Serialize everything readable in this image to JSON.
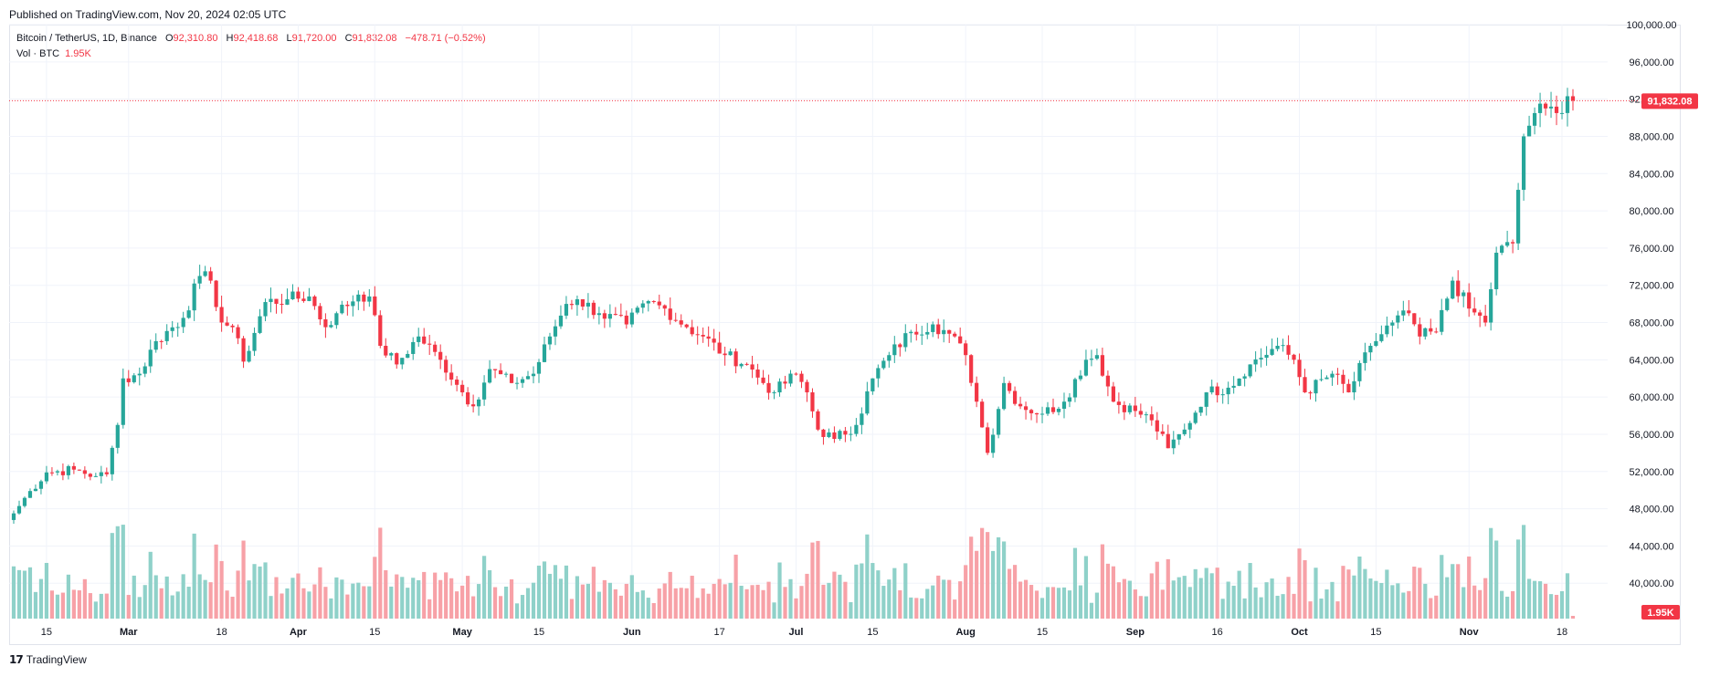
{
  "header": {
    "published": "Published on TradingView.com, Nov 20, 2024 02:05 UTC"
  },
  "legend": {
    "symbol": "Bitcoin / TetherUS, 1D, Binance",
    "open_label": "O",
    "open": "92,310.80",
    "high_label": "H",
    "high": "92,418.68",
    "low_label": "L",
    "low": "91,720.00",
    "close_label": "C",
    "close": "91,832.08",
    "change": "−478.71 (−0.52%)",
    "volume_label": "Vol · BTC",
    "volume": "1.95K"
  },
  "footer": {
    "logo_text": "TradingView",
    "logo_icon": "tradingview-logo-icon"
  },
  "colors": {
    "up": "#26a69a",
    "down": "#f23645",
    "up_volume": "#8fd1c9",
    "down_volume": "#f7a1a7",
    "grid": "#f0f3fa",
    "text": "#131722"
  },
  "chart_data": {
    "type": "candlestick",
    "title": "Bitcoin / TetherUS, 1D, Binance",
    "ylim": [
      36000,
      100000
    ],
    "y_ticks": [
      "100,000.00",
      "96,000.00",
      "92,000.00",
      "88,000.00",
      "84,000.00",
      "80,000.00",
      "76,000.00",
      "72,000.00",
      "68,000.00",
      "64,000.00",
      "60,000.00",
      "56,000.00",
      "52,000.00",
      "48,000.00",
      "44,000.00",
      "40,000.00"
    ],
    "y_tick_values": [
      100000,
      96000,
      92000,
      88000,
      84000,
      80000,
      76000,
      72000,
      68000,
      64000,
      60000,
      56000,
      52000,
      48000,
      44000,
      40000
    ],
    "x_ticks": [
      "15",
      "Mar",
      "18",
      "Apr",
      "15",
      "May",
      "15",
      "Jun",
      "17",
      "Jul",
      "15",
      "Aug",
      "15",
      "Sep",
      "16",
      "Oct",
      "15",
      "Nov",
      "18"
    ],
    "x_tick_dates": [
      "2024-02-15",
      "2024-03-01",
      "2024-03-18",
      "2024-04-01",
      "2024-04-15",
      "2024-05-01",
      "2024-05-15",
      "2024-06-01",
      "2024-06-17",
      "2024-07-01",
      "2024-07-15",
      "2024-08-01",
      "2024-08-15",
      "2024-09-01",
      "2024-09-16",
      "2024-10-01",
      "2024-10-15",
      "2024-11-01",
      "2024-11-18"
    ],
    "first_date": "2024-02-09",
    "last_date": "2024-11-20",
    "last_price": "91,832.08",
    "last_price_value": 91832.08,
    "last_volume": "1.95K",
    "close_path": [
      [
        "2024-02-09",
        47500
      ],
      [
        "2024-02-12",
        49900
      ],
      [
        "2024-02-15",
        51900
      ],
      [
        "2024-02-20",
        52200
      ],
      [
        "2024-02-24",
        51500
      ],
      [
        "2024-02-26",
        51700
      ],
      [
        "2024-02-28",
        57000
      ],
      [
        "2024-02-29",
        62000
      ],
      [
        "2024-03-03",
        62500
      ],
      [
        "2024-03-06",
        66000
      ],
      [
        "2024-03-11",
        68500
      ],
      [
        "2024-03-14",
        73000
      ],
      [
        "2024-03-16",
        72500
      ],
      [
        "2024-03-18",
        68000
      ],
      [
        "2024-03-20",
        67500
      ],
      [
        "2024-03-22",
        63800
      ],
      [
        "2024-03-26",
        70200
      ],
      [
        "2024-03-30",
        70500
      ],
      [
        "2024-04-03",
        70800
      ],
      [
        "2024-04-06",
        67500
      ],
      [
        "2024-04-08",
        69000
      ],
      [
        "2024-04-12",
        71000
      ],
      [
        "2024-04-14",
        70800
      ],
      [
        "2024-04-16",
        65500
      ],
      [
        "2024-04-19",
        63500
      ],
      [
        "2024-04-23",
        66500
      ],
      [
        "2024-04-27",
        64000
      ],
      [
        "2024-05-01",
        60500
      ],
      [
        "2024-05-03",
        59000
      ],
      [
        "2024-05-06",
        63000
      ],
      [
        "2024-05-10",
        61500
      ],
      [
        "2024-05-14",
        62500
      ],
      [
        "2024-05-17",
        66500
      ],
      [
        "2024-05-20",
        70000
      ],
      [
        "2024-05-22",
        70500
      ],
      [
        "2024-05-26",
        69000
      ],
      [
        "2024-05-31",
        67800
      ],
      [
        "2024-06-04",
        70300
      ],
      [
        "2024-06-07",
        69500
      ],
      [
        "2024-06-11",
        67500
      ],
      [
        "2024-06-14",
        66500
      ],
      [
        "2024-06-18",
        64500
      ],
      [
        "2024-06-22",
        63500
      ],
      [
        "2024-06-25",
        61500
      ],
      [
        "2024-06-27",
        60500
      ],
      [
        "2024-07-01",
        62500
      ],
      [
        "2024-07-03",
        60500
      ],
      [
        "2024-07-05",
        56500
      ],
      [
        "2024-07-08",
        55500
      ],
      [
        "2024-07-12",
        57000
      ],
      [
        "2024-07-15",
        62000
      ],
      [
        "2024-07-18",
        64500
      ],
      [
        "2024-07-22",
        67000
      ],
      [
        "2024-07-26",
        67800
      ],
      [
        "2024-07-29",
        66800
      ],
      [
        "2024-08-01",
        64500
      ],
      [
        "2024-08-03",
        59500
      ],
      [
        "2024-08-05",
        54000
      ],
      [
        "2024-08-08",
        61500
      ],
      [
        "2024-08-11",
        59000
      ],
      [
        "2024-08-15",
        58200
      ],
      [
        "2024-08-19",
        59500
      ],
      [
        "2024-08-23",
        64000
      ],
      [
        "2024-08-25",
        64500
      ],
      [
        "2024-08-28",
        59500
      ],
      [
        "2024-09-01",
        58500
      ],
      [
        "2024-09-04",
        57500
      ],
      [
        "2024-09-07",
        54500
      ],
      [
        "2024-09-10",
        56500
      ],
      [
        "2024-09-14",
        60500
      ],
      [
        "2024-09-18",
        61000
      ],
      [
        "2024-09-22",
        63500
      ],
      [
        "2024-09-27",
        65500
      ],
      [
        "2024-09-30",
        64000
      ],
      [
        "2024-10-02",
        60500
      ],
      [
        "2024-10-07",
        62500
      ],
      [
        "2024-10-10",
        60500
      ],
      [
        "2024-10-14",
        65500
      ],
      [
        "2024-10-18",
        68000
      ],
      [
        "2024-10-21",
        69000
      ],
      [
        "2024-10-23",
        66500
      ],
      [
        "2024-10-26",
        67000
      ],
      [
        "2024-10-29",
        72500
      ],
      [
        "2024-11-01",
        69500
      ],
      [
        "2024-11-04",
        68000
      ],
      [
        "2024-11-06",
        75500
      ],
      [
        "2024-11-09",
        76500
      ],
      [
        "2024-11-11",
        88000
      ],
      [
        "2024-11-13",
        90500
      ],
      [
        "2024-11-15",
        91000
      ],
      [
        "2024-11-17",
        90500
      ],
      [
        "2024-11-19",
        92310
      ],
      [
        "2024-11-20",
        91832
      ]
    ]
  }
}
